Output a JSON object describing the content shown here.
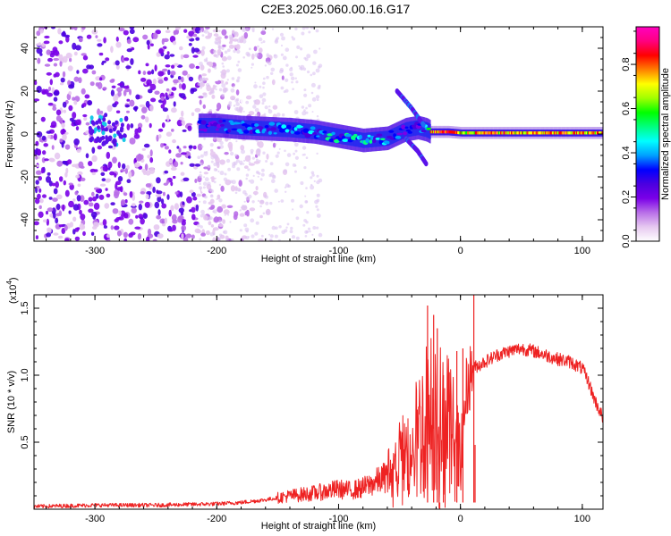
{
  "figure": {
    "title": "C2E3.2025.060.00.16.G17"
  },
  "chart_data": [
    {
      "type": "heatmap",
      "panel": "spectrogram",
      "xlabel": "Height of straight line (km)",
      "ylabel": "Frequency (Hz)",
      "xlim": [
        -350,
        117
      ],
      "ylim": [
        -50,
        50
      ],
      "x_ticks": [
        "-300",
        "-200",
        "-100",
        "0",
        "100"
      ],
      "x_tick_values": [
        -300,
        -200,
        -100,
        0,
        100
      ],
      "y_ticks": [
        "-40",
        "-20",
        "0",
        "20",
        "40"
      ],
      "y_tick_values": [
        -40,
        -20,
        0,
        20,
        40
      ],
      "colorbar": {
        "label": "Normalized spectral amplitude",
        "ticks": [
          "0.0",
          "0.2",
          "0.4",
          "0.6",
          "0.8"
        ],
        "tick_values": [
          0.0,
          0.2,
          0.4,
          0.6,
          0.8
        ],
        "range": [
          0,
          0.97
        ],
        "colors": [
          "#ffffff",
          "#e6c8f0",
          "#b96fe8",
          "#7a00e8",
          "#4b00e0",
          "#0000ff",
          "#00a0ff",
          "#00ffff",
          "#00ff80",
          "#00ff00",
          "#a0ff00",
          "#ffff00",
          "#ff8000",
          "#ff0000",
          "#ff0080",
          "#ff00c0"
        ]
      },
      "main_trace": {
        "description_free": "",
        "x": [
          -215,
          -200,
          -180,
          -160,
          -140,
          -120,
          -100,
          -80,
          -60,
          -45,
          -35,
          -28,
          -25,
          -10,
          0,
          20,
          50,
          80,
          117
        ],
        "y": [
          4,
          4,
          3,
          2.5,
          2,
          1,
          -1,
          -3,
          -2,
          2,
          3,
          2,
          1,
          1,
          0.5,
          0.5,
          0.5,
          0.5,
          0.5
        ],
        "amplitude": [
          0.25,
          0.3,
          0.35,
          0.38,
          0.4,
          0.42,
          0.42,
          0.45,
          0.4,
          0.3,
          0.3,
          0.45,
          0.8,
          0.9,
          0.75,
          0.8,
          0.8,
          0.8,
          0.8
        ]
      },
      "branches": [
        {
          "x": [
            -52,
            -40,
            -30
          ],
          "y": [
            20,
            12,
            4
          ]
        },
        {
          "x": [
            -45,
            -35,
            -28
          ],
          "y": [
            -2,
            -8,
            -14
          ]
        }
      ]
    },
    {
      "type": "line",
      "panel": "snr",
      "xlabel": "Height of straight line (km)",
      "ylabel": "SNR (10 * v/v)",
      "multiplier": "(x10",
      "multiplier_exp": "4",
      "multiplier_close": ")",
      "xlim": [
        -350,
        117
      ],
      "ylim": [
        0,
        1.6
      ],
      "x_ticks": [
        "-300",
        "-200",
        "-100",
        "0",
        "100"
      ],
      "x_tick_values": [
        -300,
        -200,
        -100,
        0,
        100
      ],
      "y_ticks": [
        "0.5",
        "1.0",
        "1.5"
      ],
      "y_tick_values": [
        0.5,
        1.0,
        1.5
      ],
      "color": "#ee2222",
      "x": [
        -350,
        -300,
        -250,
        -200,
        -180,
        -160,
        -140,
        -120,
        -100,
        -90,
        -80,
        -70,
        -60,
        -50,
        -40,
        -35,
        -30,
        -25,
        -20,
        -15,
        -10,
        -5,
        0,
        5,
        10,
        20,
        30,
        40,
        50,
        60,
        70,
        80,
        90,
        100,
        105,
        110,
        117
      ],
      "y": [
        0.02,
        0.03,
        0.03,
        0.04,
        0.05,
        0.07,
        0.1,
        0.12,
        0.15,
        0.14,
        0.16,
        0.2,
        0.25,
        0.35,
        0.45,
        0.55,
        0.65,
        0.7,
        0.8,
        0.6,
        0.7,
        0.5,
        0.35,
        0.9,
        1.05,
        1.1,
        1.15,
        1.18,
        1.2,
        1.18,
        1.15,
        1.12,
        1.1,
        1.05,
        0.95,
        0.82,
        0.68
      ],
      "spikes": [
        {
          "x": -27,
          "y": 1.52
        },
        {
          "x": -22,
          "y": 1.45
        },
        {
          "x": -19,
          "y": 1.35
        },
        {
          "x": -14,
          "y": 1.0
        },
        {
          "x": -3,
          "y": 1.18
        },
        {
          "x": 2,
          "y": 1.2
        },
        {
          "x": 11,
          "y": 1.6
        },
        {
          "x": 12,
          "y": 0.48
        },
        {
          "x": -17,
          "y": 0.0
        }
      ]
    }
  ]
}
